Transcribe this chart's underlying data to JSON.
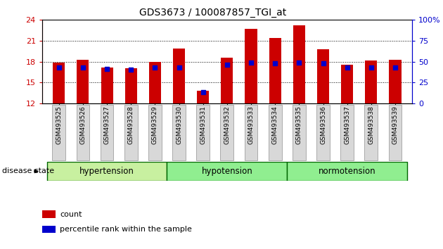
{
  "title": "GDS3673 / 100087857_TGI_at",
  "samples": [
    "GSM493525",
    "GSM493526",
    "GSM493527",
    "GSM493528",
    "GSM493529",
    "GSM493530",
    "GSM493531",
    "GSM493532",
    "GSM493533",
    "GSM493534",
    "GSM493535",
    "GSM493536",
    "GSM493537",
    "GSM493538",
    "GSM493539"
  ],
  "count_values": [
    17.9,
    18.3,
    17.2,
    17.0,
    18.0,
    19.9,
    13.8,
    18.6,
    22.7,
    21.4,
    23.2,
    19.8,
    17.6,
    18.2,
    18.3
  ],
  "percentile_pct": [
    43,
    43,
    41,
    40,
    43,
    43,
    13,
    46,
    49,
    48,
    49,
    48,
    43,
    43,
    43
  ],
  "ylim_left": [
    12,
    24
  ],
  "ylim_right": [
    0,
    100
  ],
  "yticks_left": [
    12,
    15,
    18,
    21,
    24
  ],
  "yticks_right": [
    0,
    25,
    50,
    75,
    100
  ],
  "groups": [
    {
      "label": "hypertension",
      "start": 0,
      "end": 5
    },
    {
      "label": "hypotension",
      "start": 5,
      "end": 10
    },
    {
      "label": "normotension",
      "start": 10,
      "end": 15
    }
  ],
  "group_colors": [
    "#c8f0a0",
    "#90ee90",
    "#00cc00"
  ],
  "bar_color_red": "#cc0000",
  "dot_color_blue": "#0000cc",
  "bg_color": "#ffffff",
  "plot_bg": "#ffffff",
  "axis_color_left": "#cc0000",
  "axis_color_right": "#0000cc",
  "bar_width": 0.5,
  "disease_state_label": "disease state",
  "legend_count": "count",
  "legend_percentile": "percentile rank within the sample"
}
